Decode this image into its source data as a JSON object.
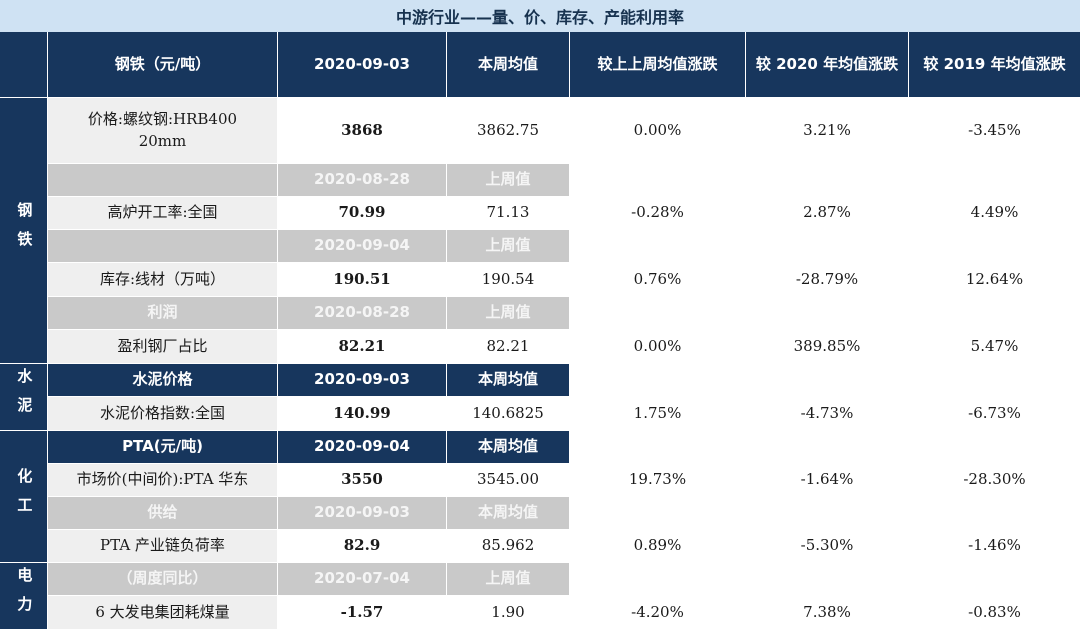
{
  "title": "中游行业——量、价、库存、产能利用率",
  "header": {
    "item": "钢铁（元/吨）",
    "date": "2020-09-03",
    "current": "本周均值",
    "wow": "较上上周均值涨跌",
    "vs2020": "较 2020 年均值涨跌",
    "vs2019": "较 2019 年均值涨跌"
  },
  "sections": {
    "steel": "钢铁",
    "cement": "水泥",
    "chemical": "化工",
    "power": "电力"
  },
  "rows": [
    {
      "label": "价格:螺纹钢:HRB400 20mm",
      "value": "3868",
      "prev": "3862.75",
      "wow": "0.00%",
      "vs2020": "3.21%",
      "vs2019": "-3.45%"
    },
    {
      "label": "高炉开工率:全国",
      "value": "70.99",
      "prev": "71.13",
      "wow": "-0.28%",
      "vs2020": "2.87%",
      "vs2019": "4.49%"
    },
    {
      "label": "库存:线材（万吨）",
      "value": "190.51",
      "prev": "190.54",
      "wow": "0.76%",
      "vs2020": "-28.79%",
      "vs2019": "12.64%"
    },
    {
      "label": "盈利钢厂占比",
      "value": "82.21",
      "prev": "82.21",
      "wow": "0.00%",
      "vs2020": "389.85%",
      "vs2019": "5.47%"
    },
    {
      "label": "水泥价格指数:全国",
      "value": "140.99",
      "prev": "140.6825",
      "wow": "1.75%",
      "vs2020": "-4.73%",
      "vs2019": "-6.73%"
    },
    {
      "label": "市场价(中间价):PTA 华东",
      "value": "3550",
      "prev": "3545.00",
      "wow": "19.73%",
      "vs2020": "-1.64%",
      "vs2019": "-28.30%"
    },
    {
      "label": "PTA 产业链负荷率",
      "value": "82.9",
      "prev": "85.962",
      "wow": "0.89%",
      "vs2020": "-5.30%",
      "vs2019": "-1.46%"
    },
    {
      "label": "6 大发电集团耗煤量",
      "value": "-1.57",
      "prev": "1.90",
      "wow": "-4.20%",
      "vs2020": "7.38%",
      "vs2019": "-0.83%"
    }
  ],
  "subheaders": [
    {
      "label": "",
      "date": "2020-08-28",
      "col": "上周值"
    },
    {
      "label": "",
      "date": "2020-09-04",
      "col": "上周值"
    },
    {
      "label": "利润",
      "date": "2020-08-28",
      "col": "上周值"
    },
    {
      "label": "水泥价格",
      "date": "2020-09-03",
      "col": "本周均值"
    },
    {
      "label": "PTA(元/吨)",
      "date": "2020-09-04",
      "col": "本周均值"
    },
    {
      "label": "供给",
      "date": "2020-09-03",
      "col": "本周均值"
    },
    {
      "label": "（周度同比）",
      "date": "2020-07-04",
      "col": "上周值"
    }
  ]
}
